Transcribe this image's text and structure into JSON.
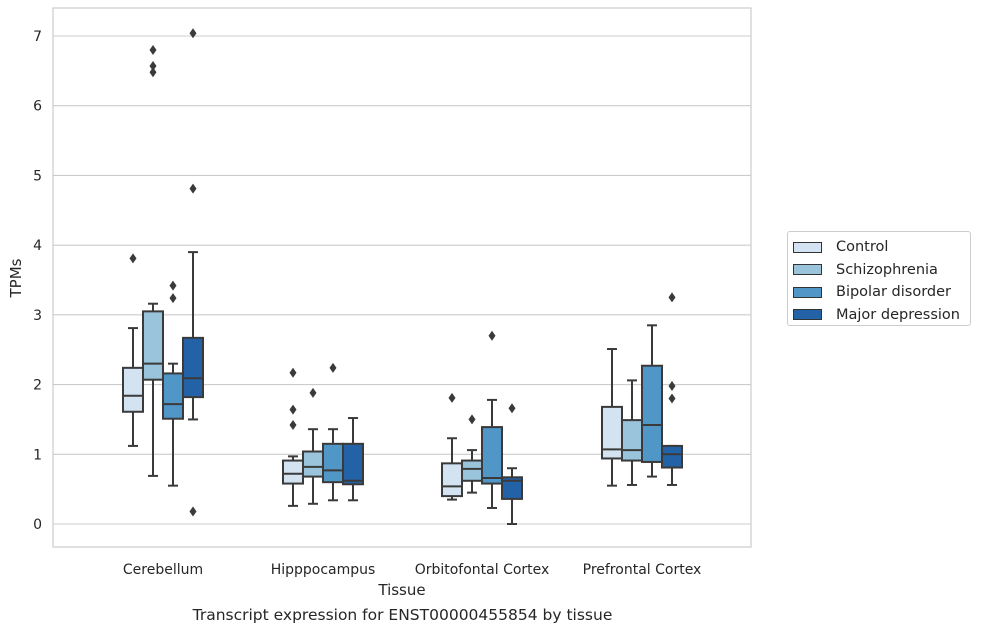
{
  "chart_data": {
    "type": "box",
    "title": "",
    "caption": "Transcript expression for ENST00000455854 by tissue",
    "xlabel": "Tissue",
    "ylabel": "TPMs",
    "ylim": [
      -0.35,
      7.4
    ],
    "yticks": [
      "0",
      "1",
      "2",
      "3",
      "4",
      "5",
      "6",
      "7"
    ],
    "grid": "horizontal",
    "legend_position": "outside-right",
    "categories": [
      "Cerebellum",
      "Hipppocampus",
      "Orbitofontal Cortex",
      "Prefrontal Cortex"
    ],
    "series": [
      {
        "name": "Control",
        "color": "#d4e3f2",
        "boxes": [
          {
            "whisker_low": 1.12,
            "q1": 1.61,
            "median": 1.84,
            "q3": 2.24,
            "whisker_high": 2.81,
            "outliers": [
              3.81
            ]
          },
          {
            "whisker_low": 0.26,
            "q1": 0.58,
            "median": 0.72,
            "q3": 0.91,
            "whisker_high": 0.97,
            "outliers": [
              1.42,
              1.64,
              2.17
            ]
          },
          {
            "whisker_low": 0.35,
            "q1": 0.4,
            "median": 0.54,
            "q3": 0.87,
            "whisker_high": 1.23,
            "outliers": [
              1.81
            ]
          },
          {
            "whisker_low": 0.55,
            "q1": 0.94,
            "median": 1.07,
            "q3": 1.68,
            "whisker_high": 2.51,
            "outliers": []
          }
        ]
      },
      {
        "name": "Schizophrenia",
        "color": "#9ac3dc",
        "boxes": [
          {
            "whisker_low": 0.69,
            "q1": 2.07,
            "median": 2.3,
            "q3": 3.05,
            "whisker_high": 3.16,
            "outliers": [
              6.48,
              6.57,
              6.8
            ]
          },
          {
            "whisker_low": 0.29,
            "q1": 0.68,
            "median": 0.82,
            "q3": 1.04,
            "whisker_high": 1.36,
            "outliers": [
              1.88
            ]
          },
          {
            "whisker_low": 0.45,
            "q1": 0.62,
            "median": 0.79,
            "q3": 0.91,
            "whisker_high": 1.06,
            "outliers": [
              1.5
            ]
          },
          {
            "whisker_low": 0.56,
            "q1": 0.91,
            "median": 1.06,
            "q3": 1.49,
            "whisker_high": 2.06,
            "outliers": []
          }
        ]
      },
      {
        "name": "Bipolar disorder",
        "color": "#5096c7",
        "boxes": [
          {
            "whisker_low": 0.55,
            "q1": 1.51,
            "median": 1.72,
            "q3": 2.16,
            "whisker_high": 2.3,
            "outliers": [
              3.24,
              3.42
            ]
          },
          {
            "whisker_low": 0.34,
            "q1": 0.6,
            "median": 0.77,
            "q3": 1.15,
            "whisker_high": 1.36,
            "outliers": [
              2.24
            ]
          },
          {
            "whisker_low": 0.23,
            "q1": 0.58,
            "median": 0.66,
            "q3": 1.39,
            "whisker_high": 1.78,
            "outliers": [
              2.7
            ]
          },
          {
            "whisker_low": 0.68,
            "q1": 0.89,
            "median": 1.42,
            "q3": 2.27,
            "whisker_high": 2.85,
            "outliers": []
          }
        ]
      },
      {
        "name": "Major depression",
        "color": "#2462a8",
        "boxes": [
          {
            "whisker_low": 1.5,
            "q1": 1.82,
            "median": 2.09,
            "q3": 2.67,
            "whisker_high": 3.9,
            "outliers": [
              0.18,
              4.81,
              7.04
            ]
          },
          {
            "whisker_low": 0.34,
            "q1": 0.57,
            "median": 0.62,
            "q3": 1.15,
            "whisker_high": 1.52,
            "outliers": []
          },
          {
            "whisker_low": 0.0,
            "q1": 0.36,
            "median": 0.62,
            "q3": 0.67,
            "whisker_high": 0.8,
            "outliers": [
              1.66
            ]
          },
          {
            "whisker_low": 0.56,
            "q1": 0.81,
            "median": 1.0,
            "q3": 1.12,
            "whisker_high": 1.12,
            "outliers": [
              1.8,
              1.98,
              3.25
            ]
          }
        ]
      }
    ]
  }
}
